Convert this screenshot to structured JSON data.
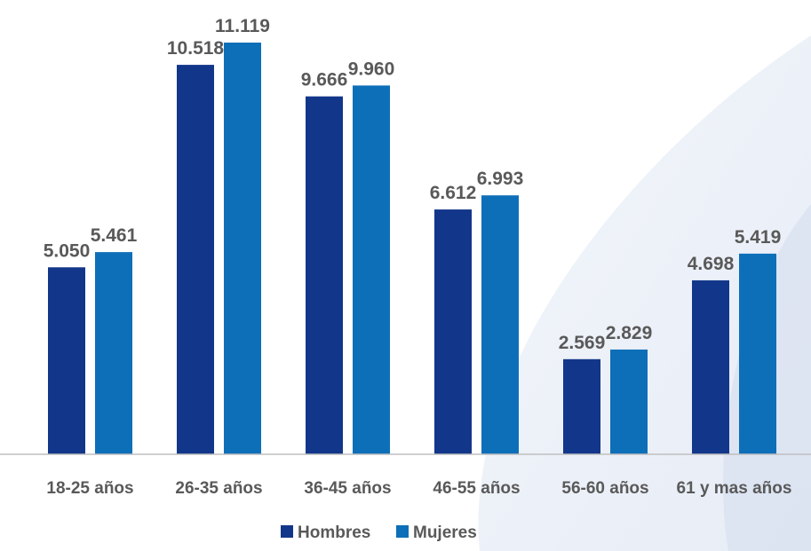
{
  "chart_data": {
    "type": "bar",
    "categories": [
      "18-25 años",
      "26-35 años",
      "36-45 años",
      "46-55 años",
      "56-60 años",
      "61 y mas años"
    ],
    "series": [
      {
        "name": "Hombres",
        "values": [
          5050,
          10518,
          9666,
          6612,
          2569,
          4698
        ],
        "labels": [
          "5.050",
          "10.518",
          "9.666",
          "6.612",
          "2.569",
          "4.698"
        ],
        "color": "#12368a"
      },
      {
        "name": "Mujeres",
        "values": [
          5461,
          11119,
          9960,
          6993,
          2829,
          5419
        ],
        "labels": [
          "5.461",
          "11.119",
          "9.960",
          "6.993",
          "2.829",
          "5.419"
        ],
        "color": "#0e6fb9"
      }
    ],
    "ylim": [
      0,
      11119
    ],
    "grid": false,
    "legend": "bottom-center"
  }
}
